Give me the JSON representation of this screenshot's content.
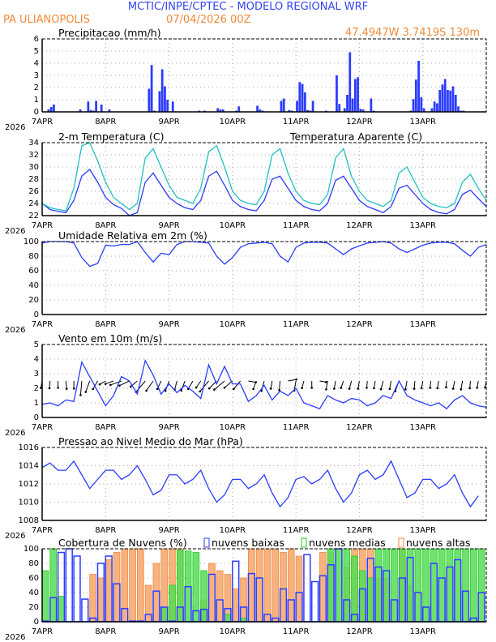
{
  "header": {
    "title": "MCTIC/INPE/CPTEC - MODELO REGIONAL WRF",
    "location": "PA ULIANOPOLIS",
    "run": "07/04/2026 00Z",
    "coords": "47.4947W 3.7419S 130m"
  },
  "colors": {
    "blue": "#2b3cff",
    "orange": "#f08a3c",
    "cyan": "#20c0c0",
    "green": "#22cc22",
    "title_blue": "#3344ee"
  },
  "x_axis": {
    "labels": [
      "7APR",
      "8APR",
      "9APR",
      "10APR",
      "11APR",
      "12APR",
      "13APR"
    ],
    "year": "2026",
    "hours": 168
  },
  "chart_data": [
    {
      "type": "bar",
      "title": "Precipitacao (mm/h)",
      "ylim": [
        0,
        6
      ],
      "yticks": [
        0,
        1,
        2,
        3,
        4,
        5,
        6
      ],
      "step_hours": 1,
      "points": [
        [
          2,
          0.2
        ],
        [
          3,
          0.4
        ],
        [
          4,
          0.6
        ],
        [
          14,
          0.2
        ],
        [
          17,
          0.85
        ],
        [
          18,
          0.15
        ],
        [
          19,
          0.1
        ],
        [
          20,
          0.9
        ],
        [
          22,
          0.6
        ],
        [
          25,
          0.2
        ],
        [
          40,
          1.9
        ],
        [
          41,
          3.85
        ],
        [
          42,
          0.1
        ],
        [
          44,
          1.7
        ],
        [
          45,
          3.5
        ],
        [
          46,
          2.1
        ],
        [
          47,
          1.0
        ],
        [
          49,
          0.85
        ],
        [
          59,
          0.1
        ],
        [
          61,
          0.1
        ],
        [
          66,
          0.3
        ],
        [
          67,
          0.2
        ],
        [
          68,
          0.2
        ],
        [
          73,
          0.1
        ],
        [
          74,
          0.45
        ],
        [
          81,
          0.5
        ],
        [
          82,
          0.2
        ],
        [
          83,
          0.1
        ],
        [
          90,
          0.9
        ],
        [
          91,
          1.1
        ],
        [
          93,
          0.15
        ],
        [
          94,
          0.1
        ],
        [
          96,
          0.9
        ],
        [
          97,
          2.45
        ],
        [
          98,
          2.3
        ],
        [
          99,
          1.6
        ],
        [
          100,
          0.15
        ],
        [
          101,
          0.1
        ],
        [
          102,
          0.9
        ],
        [
          107,
          0.1
        ],
        [
          111,
          3.0
        ],
        [
          112,
          0.65
        ],
        [
          114,
          0.3
        ],
        [
          115,
          1.4
        ],
        [
          116,
          4.9
        ],
        [
          117,
          1.1
        ],
        [
          118,
          2.7
        ],
        [
          119,
          2.85
        ],
        [
          120,
          0.25
        ],
        [
          121,
          0.2
        ],
        [
          124,
          1.1
        ],
        [
          125,
          0.1
        ],
        [
          139,
          0.1
        ],
        [
          140,
          1.05
        ],
        [
          141,
          2.65
        ],
        [
          142,
          4.2
        ],
        [
          143,
          1.2
        ],
        [
          144,
          0.3
        ],
        [
          147,
          0.3
        ],
        [
          148,
          0.85
        ],
        [
          149,
          0.7
        ],
        [
          150,
          1.8
        ],
        [
          151,
          2.25
        ],
        [
          152,
          2.7
        ],
        [
          153,
          1.8
        ],
        [
          154,
          1.75
        ],
        [
          155,
          2.1
        ],
        [
          156,
          1.4
        ],
        [
          157,
          0.45
        ],
        [
          158,
          0.1
        ],
        [
          159,
          0.1
        ]
      ]
    },
    {
      "type": "line",
      "title": "2-m Temperatura (C)",
      "legend2": "Temperatura Aparente (C)",
      "ylim": [
        22,
        34
      ],
      "yticks": [
        22,
        24,
        26,
        28,
        30,
        32,
        34
      ],
      "step_hours": 3,
      "series": [
        {
          "name": "2-m Temperatura (C)",
          "values": [
            24.0,
            23.0,
            22.7,
            22.5,
            24.5,
            28.5,
            29.6,
            27.5,
            25.0,
            23.8,
            23.2,
            22.0,
            22.5,
            27.5,
            29.0,
            27.0,
            25.0,
            24.0,
            23.3,
            23.0,
            24.5,
            28.5,
            29.3,
            27.0,
            24.5,
            23.5,
            23.0,
            22.8,
            24.5,
            28.0,
            28.5,
            26.5,
            24.5,
            23.5,
            23.0,
            22.8,
            24.0,
            27.8,
            28.5,
            26.5,
            24.5,
            23.5,
            23.0,
            22.5,
            23.5,
            26.5,
            27.0,
            25.5,
            24.0,
            23.0,
            22.5,
            22.3,
            23.0,
            25.5,
            26.2,
            24.8,
            23.5
          ]
        },
        {
          "name": "Temperatura Aparente (C)",
          "values": [
            24.0,
            23.3,
            23.0,
            22.8,
            26.5,
            33.5,
            34.0,
            31.0,
            27.5,
            25.0,
            24.0,
            23.0,
            24.0,
            31.5,
            33.0,
            30.0,
            27.0,
            25.0,
            24.5,
            24.0,
            26.5,
            32.5,
            33.5,
            30.0,
            26.0,
            24.5,
            24.0,
            23.8,
            26.0,
            32.0,
            33.0,
            29.0,
            26.0,
            24.5,
            24.0,
            23.8,
            25.5,
            31.5,
            33.0,
            28.5,
            26.0,
            24.5,
            24.0,
            23.5,
            24.5,
            29.0,
            30.0,
            27.5,
            25.0,
            24.0,
            23.5,
            23.3,
            24.0,
            27.5,
            28.8,
            26.5,
            24.5
          ]
        }
      ]
    },
    {
      "type": "line",
      "title": "Umidade Relativa em 2m (%)",
      "ylim": [
        0,
        100
      ],
      "yticks": [
        0,
        20,
        40,
        60,
        80,
        100
      ],
      "step_hours": 3,
      "series": [
        {
          "name": "Umidade",
          "values": [
            98,
            100,
            100,
            100,
            98,
            78,
            66,
            70,
            95,
            94,
            96,
            96,
            100,
            85,
            72,
            84,
            82,
            96,
            100,
            100,
            99,
            98,
            80,
            69,
            78,
            92,
            97,
            98,
            99,
            97,
            80,
            72,
            92,
            98,
            99,
            99,
            98,
            90,
            82,
            90,
            94,
            98,
            99,
            100,
            98,
            90,
            85,
            90,
            95,
            98,
            99,
            99,
            97,
            88,
            80,
            92,
            96
          ]
        }
      ]
    },
    {
      "type": "line",
      "title": "Vento em 10m (m/s)",
      "ylim": [
        0,
        5
      ],
      "yticks": [
        0,
        1,
        2,
        3,
        4,
        5
      ],
      "step_hours": 3,
      "series": [
        {
          "name": "Velocidade",
          "values": [
            0.9,
            1.0,
            0.8,
            1.2,
            1.1,
            3.8,
            2.8,
            1.8,
            0.8,
            1.5,
            2.8,
            2.5,
            1.6,
            3.9,
            2.9,
            1.6,
            2.3,
            1.7,
            2.2,
            1.8,
            1.3,
            3.6,
            2.3,
            3.5,
            2.3,
            2.3,
            1.1,
            1.5,
            2.2,
            1.2,
            1.8,
            1.5,
            2.0,
            1.0,
            0.8,
            0.6,
            1.5,
            1.2,
            1.0,
            1.3,
            1.2,
            0.8,
            1.0,
            1.5,
            1.3,
            2.5,
            1.5,
            1.2,
            1.0,
            0.8,
            1.0,
            0.6,
            1.2,
            1.5,
            1.0,
            0.8,
            0.7
          ]
        }
      ],
      "direction_deg": [
        190,
        185,
        180,
        175,
        180,
        185,
        200,
        210,
        240,
        250,
        250,
        245,
        230,
        220,
        215,
        205,
        200,
        195,
        200,
        210,
        215,
        220,
        225,
        230,
        230,
        220,
        100,
        200,
        195,
        190,
        185,
        80,
        190,
        195,
        180,
        100,
        190,
        190,
        200,
        195,
        190,
        185,
        190,
        195,
        190,
        200,
        190,
        185,
        190,
        185,
        190,
        185,
        190,
        190,
        185,
        190,
        190
      ]
    },
    {
      "type": "line",
      "title": "Pressao ao Nivel Medio do Mar (hPa)",
      "ylim": [
        1008,
        1016
      ],
      "yticks": [
        1008,
        1010,
        1012,
        1014,
        1016
      ],
      "step_hours": 3,
      "series": [
        {
          "name": "Pressao",
          "values": [
            1013.8,
            1014.3,
            1013.5,
            1013.5,
            1014.5,
            1013.0,
            1011.5,
            1012.5,
            1013.5,
            1013.5,
            1012.5,
            1013.0,
            1014.0,
            1012.5,
            1010.8,
            1011.3,
            1013.0,
            1013.0,
            1012.0,
            1012.5,
            1013.5,
            1011.5,
            1010.0,
            1010.8,
            1012.5,
            1012.5,
            1011.5,
            1012.0,
            1013.0,
            1011.0,
            1009.5,
            1010.5,
            1012.5,
            1012.8,
            1012.0,
            1012.5,
            1013.5,
            1011.5,
            1010.0,
            1011.0,
            1013.0,
            1013.5,
            1012.5,
            1013.0,
            1014.5,
            1012.5,
            1010.5,
            1011.0,
            1012.5,
            1012.5,
            1011.5,
            1012.0,
            1013.0,
            1011.0,
            1009.5,
            1010.7
          ]
        }
      ]
    },
    {
      "type": "bar",
      "title": "Cobertura de Nuvens (%)",
      "ylim": [
        0,
        100
      ],
      "yticks": [
        0,
        20,
        40,
        60,
        80,
        100
      ],
      "step_hours": 3,
      "series": [
        {
          "name": "nuvens altas",
          "values": [
            0,
            0,
            0,
            0,
            0,
            0,
            65,
            60,
            85,
            95,
            100,
            100,
            100,
            50,
            80,
            100,
            100,
            100,
            0,
            0,
            30,
            80,
            70,
            65,
            45,
            60,
            100,
            100,
            100,
            100,
            95,
            100,
            90,
            0,
            0,
            95,
            95,
            0,
            75,
            100,
            100,
            100,
            60,
            60,
            0,
            100,
            50,
            0,
            0,
            0,
            0,
            0,
            0,
            0,
            0,
            0
          ]
        },
        {
          "name": "nuvens medias",
          "values": [
            70,
            100,
            35,
            0,
            0,
            0,
            0,
            0,
            0,
            0,
            0,
            0,
            0,
            0,
            0,
            20,
            50,
            98,
            97,
            95,
            70,
            0,
            0,
            10,
            0,
            5,
            0,
            0,
            0,
            0,
            0,
            0,
            0,
            0,
            0,
            0,
            100,
            100,
            100,
            90,
            70,
            60,
            100,
            100,
            100,
            100,
            100,
            100,
            100,
            100,
            100,
            100,
            100,
            100,
            100,
            100
          ]
        },
        {
          "name": "nuvens baixas",
          "values": [
            1,
            33,
            95,
            100,
            90,
            31,
            5,
            80,
            90,
            52,
            18,
            1,
            1,
            10,
            42,
            20,
            1,
            20,
            48,
            15,
            17,
            65,
            30,
            18,
            83,
            20,
            66,
            60,
            10,
            5,
            45,
            30,
            40,
            92,
            55,
            63,
            78,
            100,
            30,
            10,
            45,
            87,
            75,
            70,
            30,
            60,
            88,
            40,
            20,
            80,
            60,
            75,
            85,
            42,
            5,
            40
          ]
        }
      ]
    }
  ]
}
